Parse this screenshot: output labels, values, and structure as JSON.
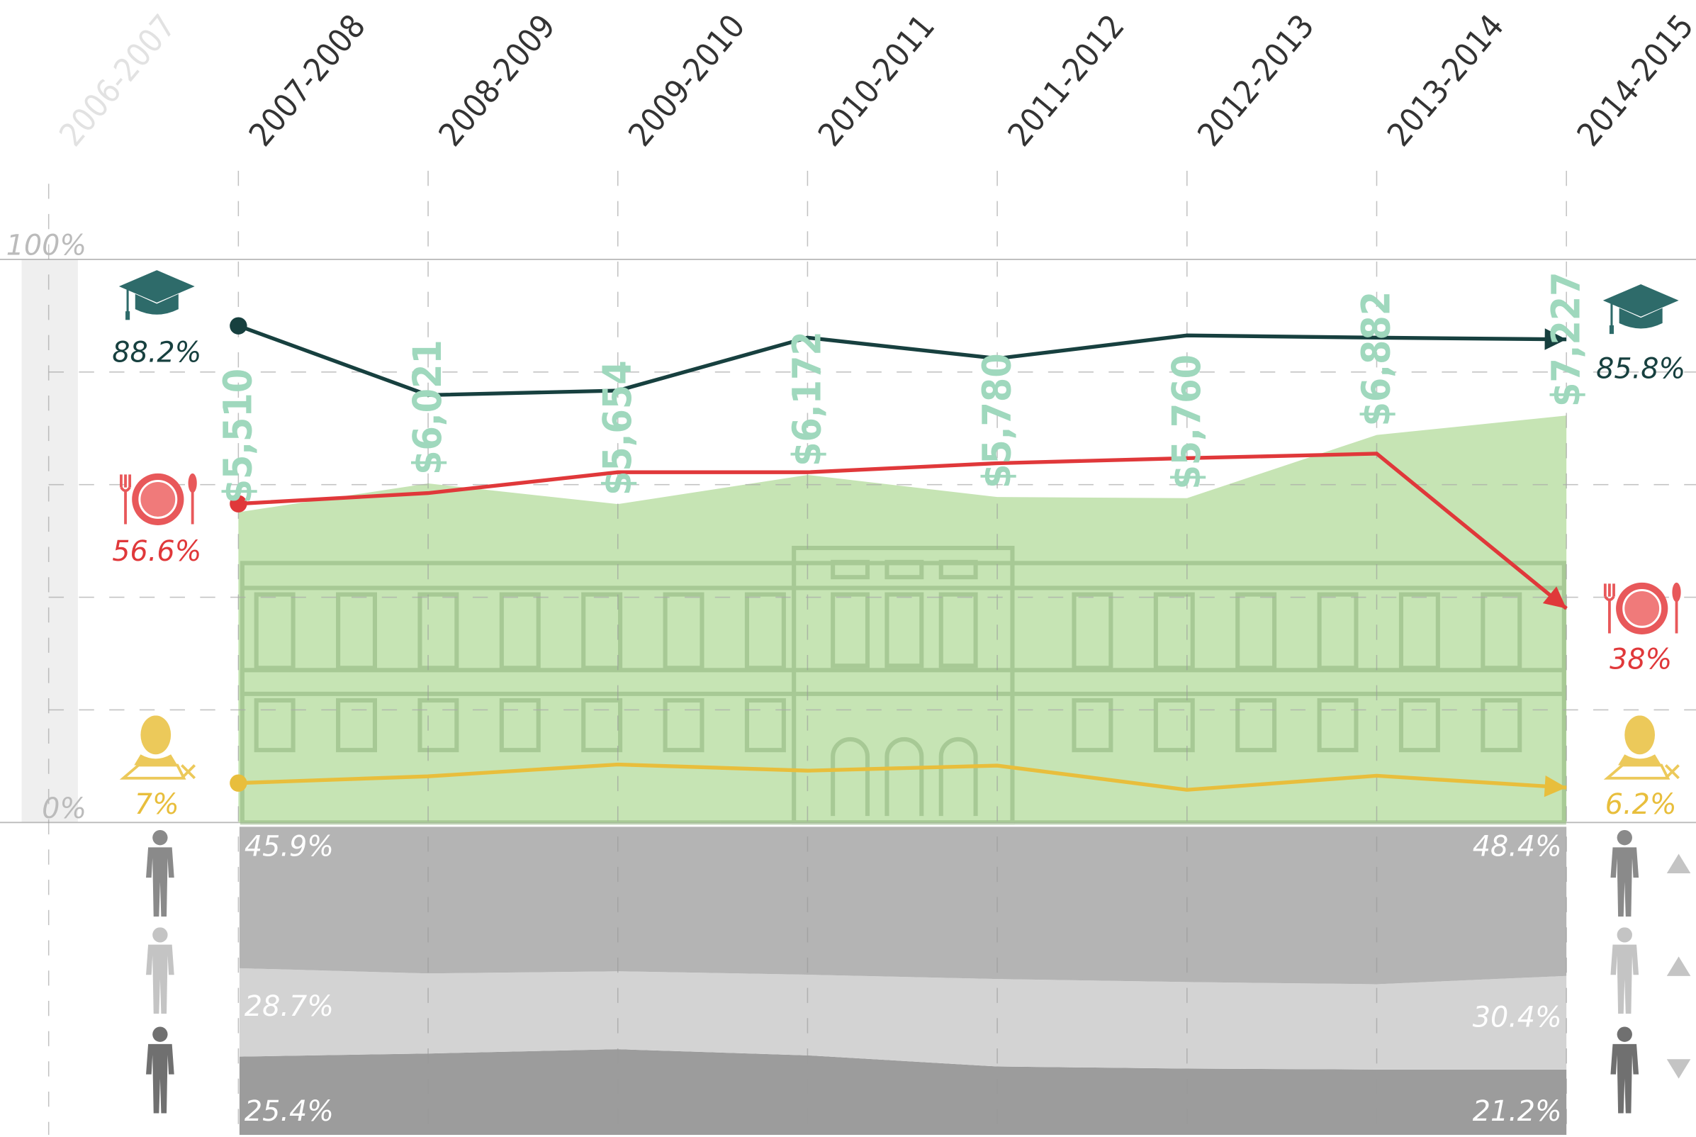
{
  "chart_data": [
    {
      "type": "line",
      "categories": [
        "2006-2007",
        "2007-2008",
        "2008-2009",
        "2009-2010",
        "2010-2011",
        "2011-2012",
        "2012-2013",
        "2013-2014",
        "2014-2015"
      ],
      "ylim": [
        0,
        100
      ],
      "yticks": [
        {
          "value": 0,
          "label": "0%"
        },
        {
          "value": 100,
          "label": "100%"
        }
      ],
      "minor_yticks": [
        20,
        40,
        60,
        80
      ],
      "y2lim": [
        0,
        10000
      ],
      "series": [
        {
          "color": "#17403f",
          "values": [
            null,
            88.2,
            75.9,
            76.7,
            86.1,
            82.4,
            86.5,
            86.1,
            85.8
          ],
          "value_labels": [
            null,
            "88.2%",
            null,
            null,
            null,
            null,
            null,
            null,
            "85.8%"
          ]
        },
        {
          "color": "#e0383a",
          "values": [
            null,
            56.6,
            58.5,
            62.2,
            62.2,
            63.8,
            64.7,
            65.5,
            38
          ],
          "value_labels": [
            null,
            "56.6%",
            null,
            null,
            null,
            null,
            null,
            null,
            "38%"
          ]
        },
        {
          "color": "#e8be3c",
          "values": [
            null,
            7,
            8.2,
            10.3,
            9.2,
            10.1,
            5.8,
            8.3,
            6.2
          ],
          "value_labels": [
            null,
            "7%",
            null,
            null,
            null,
            null,
            null,
            null,
            "6.2%"
          ]
        },
        {
          "type": "area",
          "axis": "y2",
          "color": "#c6e4b4",
          "label_color": "#9fd8bd",
          "values": [
            null,
            5510,
            6021,
            5654,
            6172,
            5780,
            5760,
            6882,
            7227
          ],
          "value_labels": [
            null,
            "$5,510",
            "$6,021",
            "$5,654",
            "$6,172",
            "$5,780",
            "$5,760",
            "$6,882",
            "$7,227"
          ]
        }
      ]
    },
    {
      "type": "area",
      "stacked": true,
      "ylim": [
        0,
        100
      ],
      "series": [
        {
          "color": "#b4b4b4",
          "values": [
            null,
            45.9,
            47.6,
            46.9,
            48.0,
            49.4,
            50.4,
            51.1,
            48.4
          ],
          "value_labels": [
            null,
            "45.9%",
            null,
            null,
            null,
            null,
            null,
            null,
            "48.4%"
          ]
        },
        {
          "color": "#d3d3d3",
          "values": [
            null,
            28.7,
            26.0,
            25.3,
            26.2,
            28.4,
            28.1,
            27.7,
            30.4
          ],
          "value_labels": [
            null,
            "28.7%",
            null,
            null,
            null,
            null,
            null,
            null,
            "30.4%"
          ]
        },
        {
          "color": "#9c9c9c",
          "values": [
            null,
            25.4,
            26.4,
            27.8,
            25.8,
            22.2,
            21.5,
            21.2,
            21.2
          ],
          "value_labels": [
            null,
            "25.4%",
            null,
            null,
            null,
            null,
            null,
            null,
            "21.2%"
          ]
        }
      ]
    }
  ]
}
